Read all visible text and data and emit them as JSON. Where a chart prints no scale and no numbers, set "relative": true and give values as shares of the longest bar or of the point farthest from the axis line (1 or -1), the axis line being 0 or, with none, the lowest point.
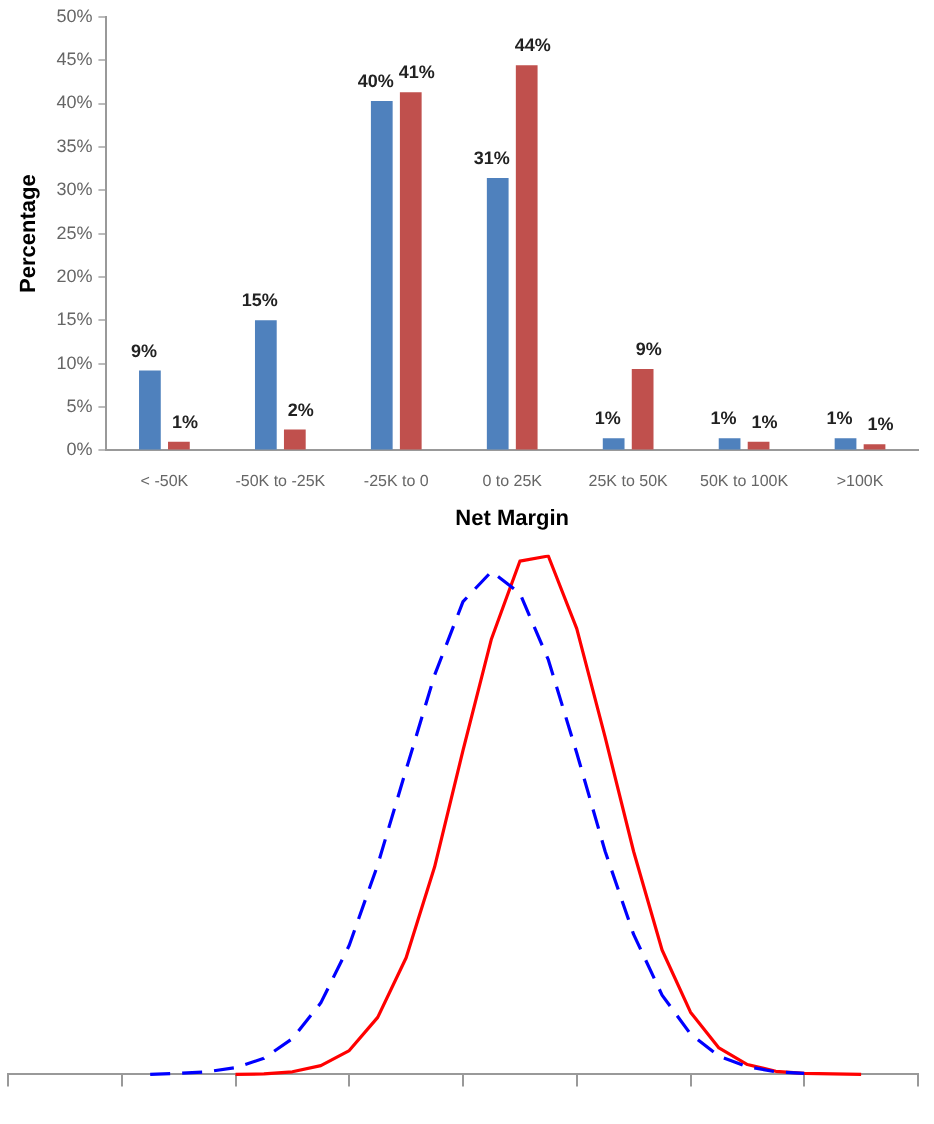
{
  "chart_data": [
    {
      "type": "bar",
      "xlabel": "Net Margin",
      "ylabel": "Percentage",
      "categories": [
        "< -50K",
        "-50K to -25K",
        "-25K to 0",
        "0 to 25K",
        "25K to 50K",
        "50K to 100K",
        ">100K"
      ],
      "series": [
        {
          "color": "#4f81bd",
          "values": [
            9.2,
            15,
            40.3,
            31.4,
            1.4,
            1.4,
            1.4
          ],
          "value_labels": [
            "9%",
            "15%",
            "40%",
            "31%",
            "1%",
            "1%",
            "1%"
          ]
        },
        {
          "color": "#c0504d",
          "values": [
            1,
            2.4,
            41.3,
            44.4,
            9.4,
            1,
            0.7
          ],
          "value_labels": [
            "1%",
            "2%",
            "41%",
            "44%",
            "9%",
            "1%",
            "1%"
          ]
        }
      ],
      "ylim": [
        0,
        50
      ],
      "yticks": [
        {
          "value": 0,
          "label": "0%"
        },
        {
          "value": 5,
          "label": "5%"
        },
        {
          "value": 10,
          "label": "10%"
        },
        {
          "value": 15,
          "label": "15%"
        },
        {
          "value": 20,
          "label": "20%"
        },
        {
          "value": 25,
          "label": "25%"
        },
        {
          "value": 30,
          "label": "30%"
        },
        {
          "value": 35,
          "label": "35%"
        },
        {
          "value": 40,
          "label": "40%"
        },
        {
          "value": 45,
          "label": "45%"
        },
        {
          "value": 50,
          "label": "50%"
        }
      ],
      "grid": false,
      "legend": false
    },
    {
      "type": "line",
      "relative": true,
      "marker": "none",
      "categories": [
        null,
        null,
        null,
        null,
        null,
        null,
        null,
        null,
        null,
        null,
        null,
        null,
        null,
        null,
        null,
        null,
        null,
        null,
        null,
        null,
        null,
        null,
        null,
        null,
        null,
        null,
        null,
        null,
        null,
        null,
        null,
        null,
        null
      ],
      "series": [
        {
          "color": "#0000ff",
          "line_style": "dashed",
          "values": [
            null,
            null,
            null,
            null,
            null,
            0,
            0.002,
            0.005,
            0.013,
            0.031,
            0.069,
            0.138,
            0.249,
            0.404,
            0.588,
            0.77,
            0.912,
            0.97,
            0.928,
            0.8,
            0.62,
            0.43,
            0.27,
            0.153,
            0.078,
            0.035,
            0.015,
            0.005,
            0.002,
            null,
            null,
            null,
            null
          ]
        },
        {
          "color": "#ff0000",
          "line_style": "solid",
          "values": [
            null,
            null,
            null,
            null,
            null,
            null,
            null,
            null,
            0,
            0.001,
            0.005,
            0.017,
            0.046,
            0.11,
            0.225,
            0.4,
            0.625,
            0.84,
            0.99,
            1,
            0.86,
            0.65,
            0.43,
            0.24,
            0.12,
            0.051,
            0.019,
            0.006,
            0.002,
            0.001,
            0,
            null,
            null
          ]
        }
      ],
      "grid": false,
      "legend": false
    }
  ]
}
